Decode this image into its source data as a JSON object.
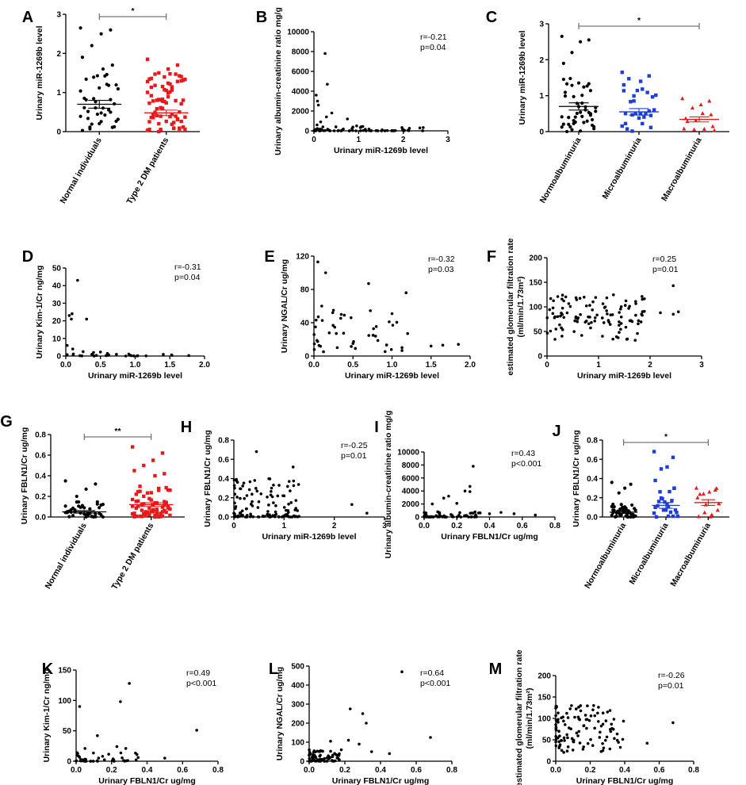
{
  "chart_data": [
    {
      "id": "A",
      "label": "A",
      "type": "scatter",
      "ylabel": "Urinary miR-1269b level",
      "ylim": [
        0,
        3
      ],
      "yticks": [
        "0",
        "1",
        "2",
        "3"
      ],
      "categories": [
        "Normal individuals",
        "Type 2 DM patients"
      ],
      "series": [
        {
          "name": "Normal individuals",
          "color": "#000000",
          "mean": 0.7,
          "sem": 0.1,
          "n": 45
        },
        {
          "name": "Type 2 DM patients",
          "color": "#e8191b",
          "mean": 0.48,
          "sem": 0.07,
          "n": 75
        }
      ],
      "significance": "*"
    },
    {
      "id": "B",
      "label": "B",
      "type": "scatter",
      "xlabel": "Urinary miR-1269b level",
      "ylabel": "Urinary albumin-creatinine ratio mg/g",
      "xlim": [
        0,
        3
      ],
      "ylim": [
        0,
        10000
      ],
      "xticks": [
        "0",
        "1",
        "2",
        "3"
      ],
      "yticks": [
        "0",
        "2000",
        "4000",
        "6000",
        "8000",
        "10000"
      ],
      "r": "r=-0.21",
      "p": "p=0.04"
    },
    {
      "id": "C",
      "label": "C",
      "type": "scatter",
      "ylabel": "Urinary miR-1269b level",
      "ylim": [
        0,
        3
      ],
      "yticks": [
        "0",
        "1",
        "2",
        "3"
      ],
      "categories": [
        "Normoalbuminuria",
        "Microalbuminuria",
        "Macroalbuminuria"
      ],
      "series": [
        {
          "name": "Normoalbuminuria",
          "color": "#000000",
          "mean": 0.7,
          "sem": 0.1,
          "n": 50
        },
        {
          "name": "Microalbuminuria",
          "color": "#1e3ddb",
          "mean": 0.55,
          "sem": 0.09,
          "n": 30
        },
        {
          "name": "Macroalbuminuria",
          "color": "#e8191b",
          "mean": 0.34,
          "sem": 0.07,
          "n": 14
        }
      ],
      "significance": "*"
    },
    {
      "id": "D",
      "label": "D",
      "type": "scatter",
      "xlabel": "Urinary miR-1269b level",
      "ylabel": "Urinary Kim-1/Cr ng/mg",
      "xlim": [
        0,
        2
      ],
      "ylim": [
        0,
        50
      ],
      "xticks": [
        "0.0",
        "0.5",
        "1.0",
        "1.5",
        "2.0"
      ],
      "yticks": [
        "0",
        "10",
        "20",
        "30",
        "40",
        "50"
      ],
      "r": "r=-0.31",
      "p": "p=0.04"
    },
    {
      "id": "E",
      "label": "E",
      "type": "scatter",
      "xlabel": "Urinary miR-1269b level",
      "ylabel": "Urinary NGAL/Cr ug/mg",
      "xlim": [
        0,
        2
      ],
      "ylim": [
        0,
        120
      ],
      "xticks": [
        "0.0",
        "0.5",
        "1.0",
        "1.5",
        "2.0"
      ],
      "yticks": [
        "0",
        "40",
        "80",
        "120"
      ],
      "r": "r=-0.32",
      "p": "p=0.03"
    },
    {
      "id": "F",
      "label": "F",
      "type": "scatter",
      "xlabel": "Urinary miR-1269b level",
      "ylabel": "estimated glomerular filtration rate",
      "ylabel2": "(ml/min/1.73m²)",
      "xlim": [
        0,
        3
      ],
      "ylim": [
        0,
        200
      ],
      "xticks": [
        "0",
        "1",
        "2",
        "3"
      ],
      "yticks": [
        "0",
        "50",
        "100",
        "150",
        "200"
      ],
      "r": "r=0.25",
      "p": "p=0.01"
    },
    {
      "id": "G",
      "label": "G",
      "type": "scatter",
      "ylabel": "Urinary FBLN1/Cr ug/mg",
      "ylim": [
        0,
        0.8
      ],
      "yticks": [
        "0.0",
        "0.2",
        "0.4",
        "0.6",
        "0.8"
      ],
      "categories": [
        "Normal individuals",
        "Type 2 DM patients"
      ],
      "series": [
        {
          "name": "Normal individuals",
          "color": "#000000",
          "mean": 0.05,
          "sem": 0.012,
          "n": 45
        },
        {
          "name": "Type 2 DM patients",
          "color": "#e8191b",
          "mean": 0.12,
          "sem": 0.018,
          "n": 75
        }
      ],
      "significance": "**"
    },
    {
      "id": "H",
      "label": "H",
      "type": "scatter",
      "xlabel": "Urinary miR-1269b level",
      "ylabel": "Urinary FBLN1/Cr ug/mg",
      "xlim": [
        0,
        3
      ],
      "ylim": [
        0,
        0.8
      ],
      "xticks": [
        "0",
        "1",
        "2",
        "3"
      ],
      "yticks": [
        "0.0",
        "0.2",
        "0.4",
        "0.6",
        "0.8"
      ],
      "r": "r=-0.25",
      "p": "p=0.01"
    },
    {
      "id": "I",
      "label": "I",
      "type": "scatter",
      "xlabel": "Urinary FBLN1/Cr ug/mg",
      "ylabel": "Urinary albumin-creatinine ratio mg/g",
      "xlim": [
        0,
        0.8
      ],
      "ylim": [
        0,
        10000
      ],
      "xticks": [
        "0.0",
        "0.2",
        "0.4",
        "0.6",
        "0.8"
      ],
      "yticks": [
        "0",
        "2000",
        "4000",
        "6000",
        "8000",
        "10000"
      ],
      "r": "r=0.43",
      "p": "p<0.001"
    },
    {
      "id": "J",
      "label": "J",
      "type": "scatter",
      "ylabel": "Urinary FBLN1/Cr ug/mg",
      "ylim": [
        0,
        0.8
      ],
      "yticks": [
        "0.0",
        "0.2",
        "0.4",
        "0.6",
        "0.8"
      ],
      "categories": [
        "Normoalbuminuria",
        "Microalbuminuria",
        "Macroalbuminuria"
      ],
      "series": [
        {
          "name": "Normoalbuminuria",
          "color": "#000000",
          "mean": 0.05,
          "sem": 0.012,
          "n": 50
        },
        {
          "name": "Microalbuminuria",
          "color": "#1e3ddb",
          "mean": 0.12,
          "sem": 0.03,
          "n": 28
        },
        {
          "name": "Macroalbuminuria",
          "color": "#e8191b",
          "mean": 0.15,
          "sem": 0.03,
          "n": 14
        }
      ],
      "significance": "*"
    },
    {
      "id": "K",
      "label": "K",
      "type": "scatter",
      "xlabel": "Urinary FBLN1/Cr ug/mg",
      "ylabel": "Urinary Kim-1/Cr ng/mg",
      "xlim": [
        0,
        0.8
      ],
      "ylim": [
        0,
        150
      ],
      "xticks": [
        "0.0",
        "0.2",
        "0.4",
        "0.6",
        "0.8"
      ],
      "yticks": [
        "0",
        "50",
        "100",
        "150"
      ],
      "r": "r=0.49",
      "p": "p<0.001"
    },
    {
      "id": "L",
      "label": "L",
      "type": "scatter",
      "xlabel": "Urinary FBLN1/Cr ug/mg",
      "ylabel": "Urinary NGAL/Cr ug/mg",
      "xlim": [
        0,
        0.8
      ],
      "ylim": [
        0,
        500
      ],
      "xticks": [
        "0.0",
        "0.2",
        "0.4",
        "0.6",
        "0.8"
      ],
      "yticks": [
        "0",
        "100",
        "200",
        "300",
        "400",
        "500"
      ],
      "r": "r=0.64",
      "p": "p<0.001"
    },
    {
      "id": "M",
      "label": "M",
      "type": "scatter",
      "xlabel": "Urinary FBLN1/Cr ug/mg",
      "ylabel": "estimated glomerular filtration rate",
      "ylabel2": "(ml/min/1.73m²)",
      "xlim": [
        0,
        0.8
      ],
      "ylim": [
        0,
        200
      ],
      "xticks": [
        "0.0",
        "0.2",
        "0.4",
        "0.6",
        "0.8"
      ],
      "yticks": [
        "0",
        "50",
        "100",
        "150",
        "200"
      ],
      "r": "r=-0.26",
      "p": "p=0.01"
    }
  ]
}
